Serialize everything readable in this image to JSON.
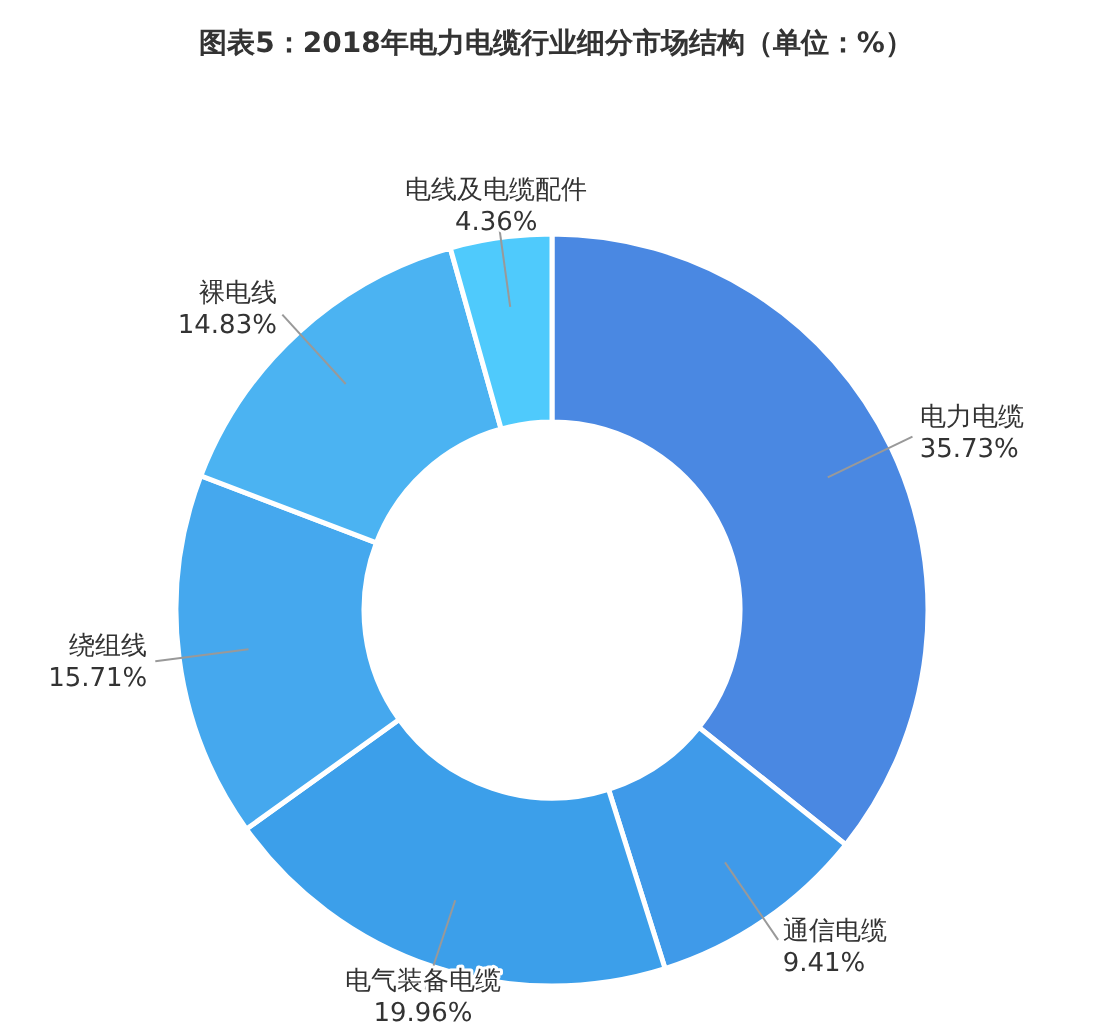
{
  "chart_data": {
    "type": "donut",
    "title": "图表5：2018年电力电缆行业细分市场结构（单位：%）",
    "categories": [
      "电力电缆",
      "通信电缆",
      "电气装备电缆",
      "绕组线",
      "裸电线",
      "电线及电缆配件"
    ],
    "values": [
      35.73,
      9.41,
      19.96,
      15.71,
      14.83,
      4.36
    ],
    "value_labels": [
      "35.73%",
      "9.41%",
      "19.96%",
      "15.71%",
      "14.83%",
      "4.36%"
    ],
    "colors": [
      "#4a88e2",
      "#3f9ae9",
      "#3c9fea",
      "#45a8ee",
      "#4bb3f2",
      "#4fcafc"
    ]
  }
}
